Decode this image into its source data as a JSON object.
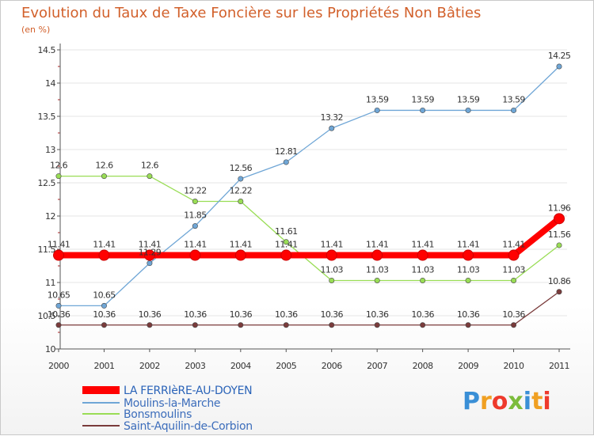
{
  "chart_data": {
    "type": "line",
    "title": "Evolution du Taux de Taxe Foncière sur les Propriétés Non Bâties",
    "subtitle": "(en %)",
    "xlabel": "",
    "ylabel": "",
    "categories": [
      "2000",
      "2001",
      "2002",
      "2003",
      "2004",
      "2005",
      "2006",
      "2007",
      "2008",
      "2009",
      "2010",
      "2011"
    ],
    "ylim": [
      10,
      14.5
    ],
    "yticks": [
      10,
      10.5,
      11,
      11.5,
      12,
      12.5,
      13,
      13.5,
      14,
      14.5
    ],
    "ytick_labels": [
      "10",
      "10.5",
      "11",
      "11.5",
      "12",
      "12.5",
      "13",
      "13.5",
      "14",
      "14.5"
    ],
    "legend_position": "bottom-left",
    "series": [
      {
        "name": "LA FERRIèRE-AU-DOYEN",
        "color": "#ff0000",
        "values": [
          11.41,
          11.41,
          11.41,
          11.41,
          11.41,
          11.41,
          11.41,
          11.41,
          11.41,
          11.41,
          11.41,
          11.96
        ],
        "labels": [
          "11.41",
          "11.41",
          "11.41",
          "11.41",
          "11.41",
          "11.41",
          "11.41",
          "11.41",
          "11.41",
          "11.41",
          "11.41",
          "11.96"
        ]
      },
      {
        "name": "Moulins-la-Marche",
        "color": "#6fa6d6",
        "values": [
          10.65,
          10.65,
          11.29,
          11.85,
          12.56,
          12.81,
          13.32,
          13.59,
          13.59,
          13.59,
          13.59,
          14.25
        ],
        "labels": [
          "10.65",
          "10.65",
          "11.29",
          "11.85",
          "12.56",
          "12.81",
          "13.32",
          "13.59",
          "13.59",
          "13.59",
          "13.59",
          "14.25"
        ]
      },
      {
        "name": "Bonsmoulins",
        "color": "#99dd55",
        "values": [
          12.6,
          12.6,
          12.6,
          12.22,
          12.22,
          11.61,
          11.03,
          11.03,
          11.03,
          11.03,
          11.03,
          11.56
        ],
        "labels": [
          "12.6",
          "12.6",
          "12.6",
          "12.22",
          "12.22",
          "11.61",
          "11.03",
          "11.03",
          "11.03",
          "11.03",
          "11.03",
          "11.56"
        ]
      },
      {
        "name": "Saint-Aquilin-de-Corbion",
        "color": "#7a3b3b",
        "values": [
          10.36,
          10.36,
          10.36,
          10.36,
          10.36,
          10.36,
          10.36,
          10.36,
          10.36,
          10.36,
          10.36,
          10.86
        ],
        "labels": [
          "10.36",
          "10.36",
          "10.36",
          "10.36",
          "10.36",
          "10.36",
          "10.36",
          "10.36",
          "10.36",
          "10.36",
          "10.36",
          "10.86"
        ]
      }
    ]
  },
  "brand": {
    "logo_text": "Proxiti",
    "letter_colors": [
      "#3a8fd6",
      "#f0a022",
      "#ee3a2c",
      "#7cbc3b",
      "#3a8fd6",
      "#f0a022",
      "#ee3a2c"
    ]
  }
}
